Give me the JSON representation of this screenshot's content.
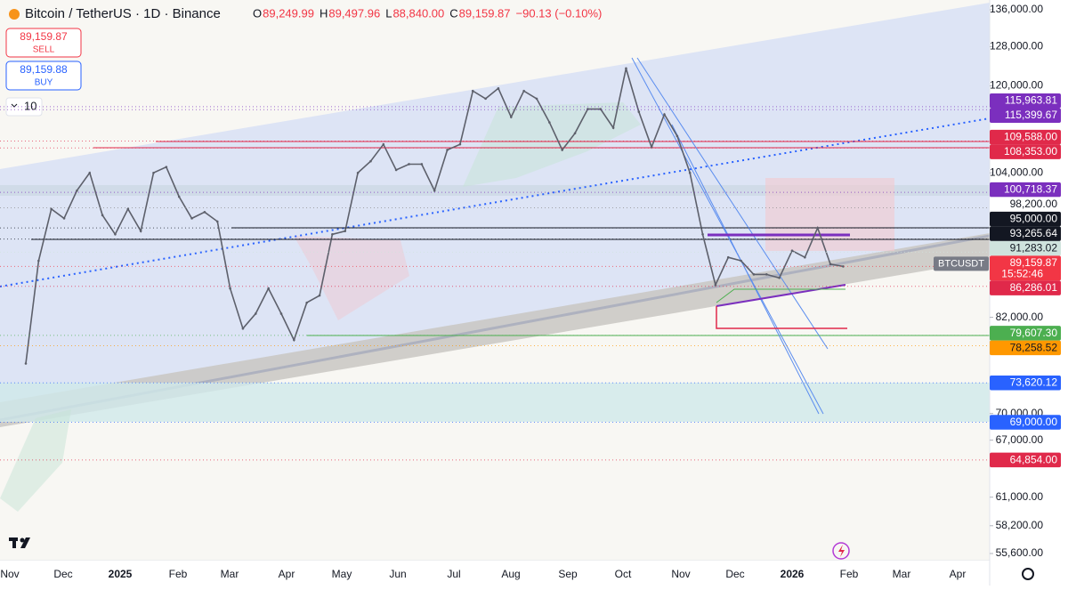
{
  "header": {
    "symbol": "Bitcoin / TetherUS · 1D · Binance",
    "ohlc": [
      {
        "key": "O",
        "value": "89,249.99"
      },
      {
        "key": "H",
        "value": "89,497.96"
      },
      {
        "key": "L",
        "value": "88,840.00"
      },
      {
        "key": "C",
        "value": "89,159.87"
      }
    ],
    "change": "−90.13 (−0.10%)"
  },
  "order_buttons": [
    {
      "price": "89,159.87",
      "side": "SELL"
    },
    {
      "price": "89,159.88",
      "side": "BUY"
    }
  ],
  "quantity": "10",
  "chart": {
    "price_axis": {
      "log_scale": true,
      "ticks": [
        {
          "value": 136000,
          "label": "136,000.00"
        },
        {
          "value": 128000,
          "label": "128,000.00"
        },
        {
          "value": 120000,
          "label": "120,000.00"
        },
        {
          "value": 104000,
          "label": "104,000.00"
        },
        {
          "value": 82000,
          "label": "82,000.00"
        },
        {
          "value": 70000,
          "label": "70,000.00"
        },
        {
          "value": 67000,
          "label": "67,000.00"
        },
        {
          "value": 61000,
          "label": "61,000.00"
        },
        {
          "value": 58200,
          "label": "58,200.00"
        },
        {
          "value": 55600,
          "label": "55,600.00"
        }
      ]
    },
    "time_axis": [
      "Nov",
      "Dec",
      "2025",
      "Feb",
      "Mar",
      "Apr",
      "May",
      "Jun",
      "Jul",
      "Aug",
      "Sep",
      "Oct",
      "Nov",
      "Dec",
      "2026",
      "Feb",
      "Mar",
      "Apr"
    ],
    "price_tags": [
      {
        "value": 115963.81,
        "label": "115,963.81",
        "color": "#7b2fbe",
        "text_color": "#ffffff"
      },
      {
        "value": 115399.67,
        "label": "115,399.67",
        "color": "#7b2fbe",
        "text_color": "#ffffff"
      },
      {
        "value": 109588,
        "label": "109,588.00",
        "color": "#e0294a",
        "text_color": "#ffffff"
      },
      {
        "value": 108353,
        "label": "108,353.00",
        "color": "#e0294a",
        "text_color": "#ffffff"
      },
      {
        "value": 100718.37,
        "label": "100,718.37",
        "color": "#7b2fbe",
        "text_color": "#ffffff"
      },
      {
        "value": 98200,
        "label": "98,200.00",
        "color": "#ffffff",
        "text_color": "#131722"
      },
      {
        "value": 95000,
        "label": "95,000.00",
        "color": "#131722",
        "text_color": "#ffffff"
      },
      {
        "value": 93265.64,
        "label": "93,265.64",
        "color": "#131722",
        "text_color": "#ffffff"
      },
      {
        "value": 91283.02,
        "label": "91,283.02",
        "color": "#cfe3dd",
        "text_color": "#131722"
      },
      {
        "value": 89159.87,
        "label": "89,159.87",
        "color": "#f23645",
        "text_color": "#ffffff",
        "countdown": "15:52:46",
        "symbol": "BTCUSDT"
      },
      {
        "value": 86286.01,
        "label": "86,286.01",
        "color": "#e0294a",
        "text_color": "#ffffff"
      },
      {
        "value": 79607.3,
        "label": "79,607.30",
        "color": "#4caf50",
        "text_color": "#ffffff"
      },
      {
        "value": 78258.52,
        "label": "78,258.52",
        "color": "#ff9800",
        "text_color": "#131722"
      },
      {
        "value": 73620.12,
        "label": "73,620.12",
        "color": "#2962ff",
        "text_color": "#ffffff"
      },
      {
        "value": 69000,
        "label": "69,000.00",
        "color": "#2962ff",
        "text_color": "#ffffff"
      },
      {
        "value": 64854,
        "label": "64,854.00",
        "color": "#e0294a",
        "text_color": "#ffffff"
      }
    ],
    "weekly_closes": [
      76000,
      90000,
      98000,
      96500,
      101000,
      104000,
      97000,
      94000,
      98000,
      94500,
      104000,
      105000,
      100000,
      96500,
      97500,
      96000,
      86000,
      80500,
      82500,
      86000,
      82500,
      79000,
      84000,
      85000,
      94000,
      94500,
      104000,
      106000,
      109000,
      104500,
      105500,
      105500,
      101000,
      108000,
      109000,
      119000,
      117500,
      119500,
      114000,
      119000,
      117500,
      113000,
      108000,
      111000,
      115500,
      115500,
      112000,
      123500,
      115000,
      108500,
      114500,
      110500,
      104000,
      94000,
      86500,
      90500,
      90000,
      88000,
      88000,
      87500,
      91500,
      90500,
      95000,
      89500,
      89159.87
    ]
  }
}
